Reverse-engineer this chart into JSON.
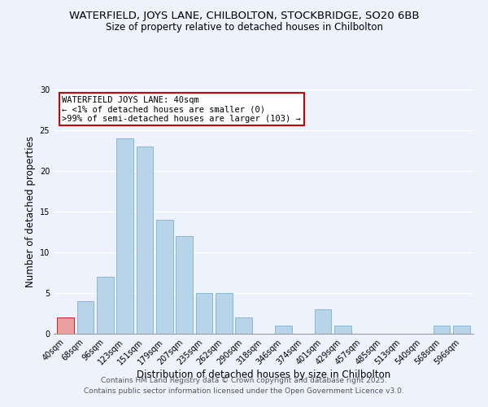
{
  "title": "WATERFIELD, JOYS LANE, CHILBOLTON, STOCKBRIDGE, SO20 6BB",
  "subtitle": "Size of property relative to detached houses in Chilbolton",
  "xlabel": "Distribution of detached houses by size in Chilbolton",
  "ylabel": "Number of detached properties",
  "categories": [
    "40sqm",
    "68sqm",
    "96sqm",
    "123sqm",
    "151sqm",
    "179sqm",
    "207sqm",
    "235sqm",
    "262sqm",
    "290sqm",
    "318sqm",
    "346sqm",
    "374sqm",
    "401sqm",
    "429sqm",
    "457sqm",
    "485sqm",
    "513sqm",
    "540sqm",
    "568sqm",
    "596sqm"
  ],
  "values": [
    2,
    4,
    7,
    24,
    23,
    14,
    12,
    5,
    5,
    2,
    0,
    1,
    0,
    3,
    1,
    0,
    0,
    0,
    0,
    1,
    1
  ],
  "bar_colors": [
    "#e8a0a0",
    "#b8d4e8",
    "#b8d4e8",
    "#b8d4e8",
    "#b8d4e8",
    "#b8d4e8",
    "#b8d4e8",
    "#b8d4e8",
    "#b8d4e8",
    "#b8d4e8",
    "#b8d4e8",
    "#b8d4e8",
    "#b8d4e8",
    "#b8d4e8",
    "#b8d4e8",
    "#b8d4e8",
    "#b8d4e8",
    "#b8d4e8",
    "#b8d4e8",
    "#b8d4e8",
    "#b8d4e8"
  ],
  "bar_edge_colors": [
    "#cc2020",
    "#88b8d8",
    "#88b8d8",
    "#88b8d8",
    "#88b8d8",
    "#88b8d8",
    "#88b8d8",
    "#88b8d8",
    "#88b8d8",
    "#88b8d8",
    "#88b8d8",
    "#88b8d8",
    "#88b8d8",
    "#88b8d8",
    "#88b8d8",
    "#88b8d8",
    "#88b8d8",
    "#88b8d8",
    "#88b8d8",
    "#88b8d8",
    "#88b8d8"
  ],
  "ylim": [
    0,
    30
  ],
  "yticks": [
    0,
    5,
    10,
    15,
    20,
    25,
    30
  ],
  "annotation_title": "WATERFIELD JOYS LANE: 40sqm",
  "annotation_line1": "← <1% of detached houses are smaller (0)",
  "annotation_line2": ">99% of semi-detached houses are larger (103) →",
  "annotation_box_color": "#ffffff",
  "annotation_box_edge": "#cc0000",
  "footer1": "Contains HM Land Registry data © Crown copyright and database right 2025.",
  "footer2": "Contains public sector information licensed under the Open Government Licence v3.0.",
  "bg_color": "#eef2fc",
  "grid_color": "#ffffff",
  "title_fontsize": 9.5,
  "subtitle_fontsize": 8.5,
  "axis_label_fontsize": 8.5,
  "tick_fontsize": 7,
  "annotation_fontsize": 7.5,
  "footer_fontsize": 6.5
}
